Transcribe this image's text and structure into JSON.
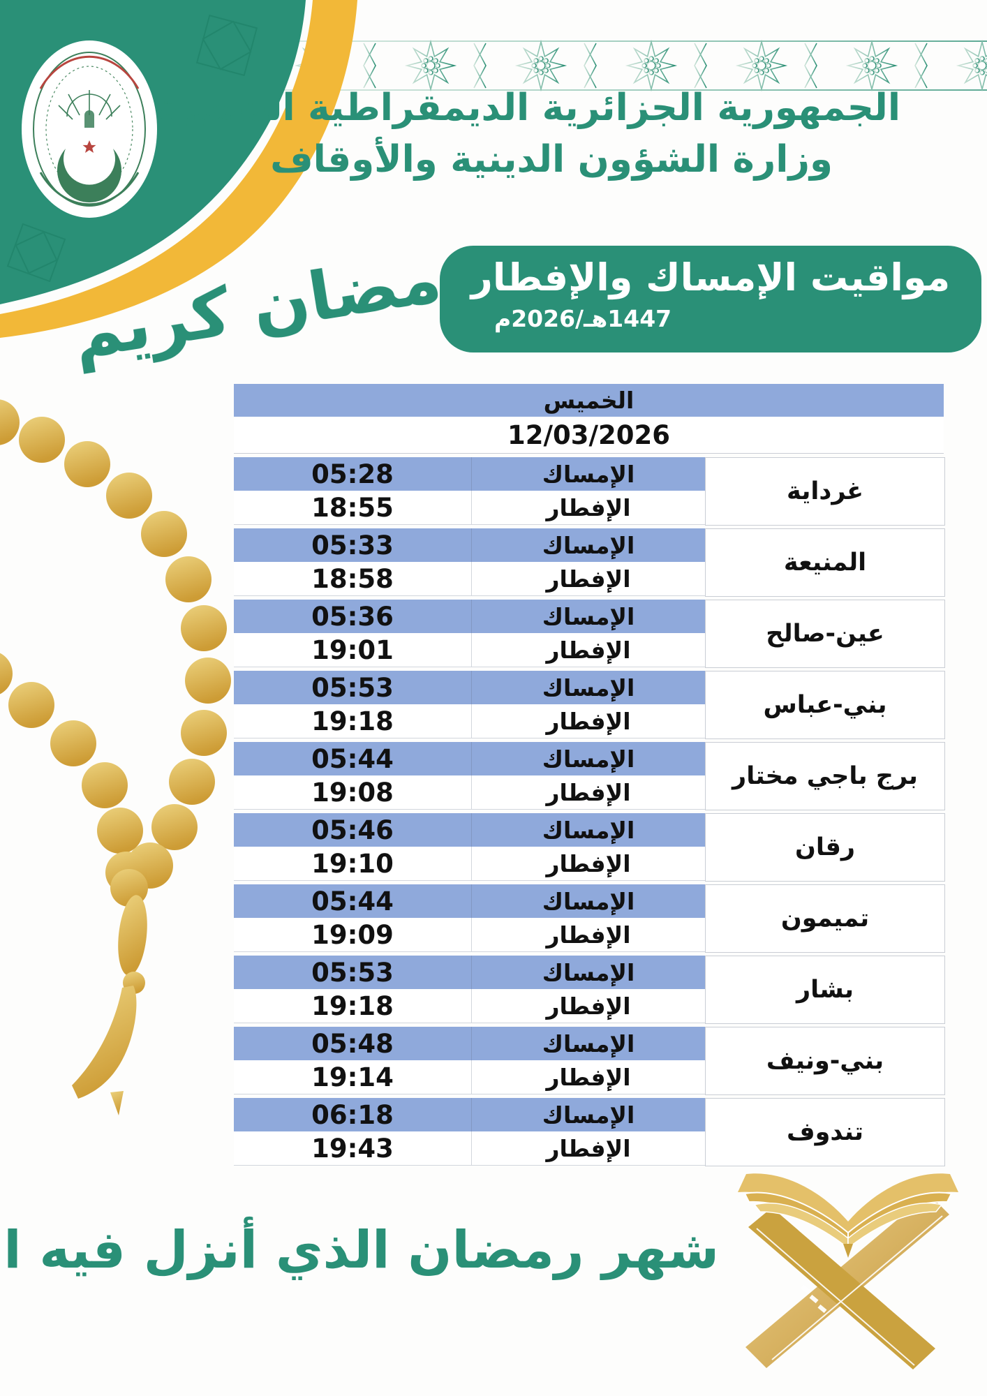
{
  "colors": {
    "green": "#2a9077",
    "gold": "#f2b838",
    "blue": "#8fa9db",
    "ink": "#111111",
    "grid": "#c9cdd4",
    "beads_gold": "#d8ab48"
  },
  "header": {
    "republic_line": "الجمهورية الجزائرية الديمقراطية الشعبية",
    "ministry_line": "وزارة الشؤون الدينية والأوقاف"
  },
  "ramadan_kareem": "رمضان كريم",
  "banner": {
    "title": "مواقيت الإمساك والإفطار",
    "year": "1447هـ/2026م"
  },
  "table": {
    "day": "الخميس",
    "date": "12/03/2026",
    "imsak_label": "الإمساك",
    "iftar_label": "الإفطار",
    "cities": [
      {
        "name": "غرداية",
        "imsak": "05:28",
        "iftar": "18:55"
      },
      {
        "name": "المنيعة",
        "imsak": "05:33",
        "iftar": "18:58"
      },
      {
        "name": "عين-صالح",
        "imsak": "05:36",
        "iftar": "19:01"
      },
      {
        "name": "بني-عباس",
        "imsak": "05:53",
        "iftar": "19:18"
      },
      {
        "name": "برج باجي مختار",
        "imsak": "05:44",
        "iftar": "19:08"
      },
      {
        "name": "رقان",
        "imsak": "05:46",
        "iftar": "19:10"
      },
      {
        "name": "تميمون",
        "imsak": "05:44",
        "iftar": "19:09"
      },
      {
        "name": "بشار",
        "imsak": "05:53",
        "iftar": "19:18"
      },
      {
        "name": "بني-ونيف",
        "imsak": "05:48",
        "iftar": "19:14"
      },
      {
        "name": "تندوف",
        "imsak": "06:18",
        "iftar": "19:43"
      }
    ]
  },
  "footer": {
    "verse": "شهر رمضان الذي أنزل فيه القرآن"
  },
  "icons": {
    "logo": "ministry-seal",
    "beads": "prayer-beads",
    "quran": "quran-on-rehal",
    "border": "eight-point-star-band"
  }
}
